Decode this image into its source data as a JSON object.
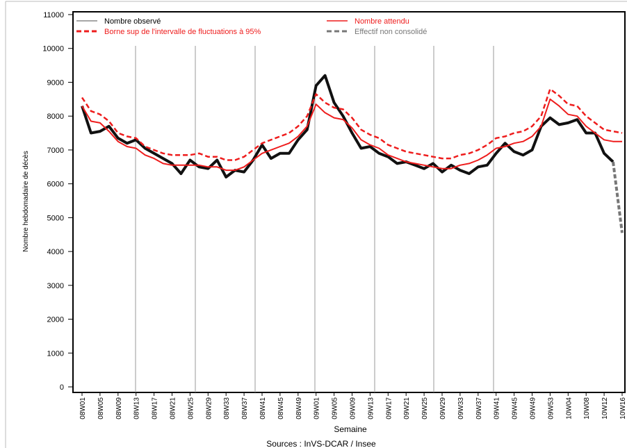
{
  "chart_data": {
    "type": "line",
    "x_label": "Semaine",
    "y_label": "Nombre hebdomadaire de décès",
    "source": "Sources : InVS-DCAR / Insee",
    "categories": [
      "08W01",
      null,
      "08W05",
      null,
      "08W09",
      null,
      "08W13",
      null,
      "08W17",
      null,
      "08W21",
      null,
      "08W25",
      null,
      "08W29",
      null,
      "08W33",
      null,
      "08W37",
      null,
      "08W41",
      null,
      "08W45",
      null,
      "08W49",
      null,
      "09W01",
      null,
      "09W05",
      null,
      "09W09",
      null,
      "09W13",
      null,
      "09W17",
      null,
      "09W21",
      null,
      "09W25",
      null,
      "09W29",
      null,
      "09W33",
      null,
      "09W37",
      null,
      "09W41",
      null,
      "09W45",
      null,
      "09W49",
      null,
      "09W53",
      null,
      "10W04",
      null,
      "10W08",
      null,
      "10W12",
      null,
      "10W16"
    ],
    "ylim": [
      0,
      11000
    ],
    "yticks": [
      0,
      1000,
      2000,
      3000,
      4000,
      5000,
      6000,
      7000,
      8000,
      9000,
      10000,
      11000
    ],
    "grid": false,
    "legend": "top-left",
    "series": [
      {
        "name": "Nombre observé",
        "color": "#111111",
        "dashed": false,
        "values": [
          8300,
          7500,
          7550,
          7700,
          7350,
          7200,
          7300,
          7050,
          6900,
          6750,
          6600,
          6300,
          6700,
          6500,
          6450,
          6700,
          6200,
          6400,
          6350,
          6700,
          7150,
          6750,
          6900,
          6900,
          7300,
          7600,
          8900,
          9200,
          8400,
          8000,
          7500,
          7050,
          7100,
          6900,
          6800,
          6600,
          6650,
          6550,
          6450,
          6600,
          6350,
          6550,
          6400,
          6300,
          6500,
          6550,
          6900,
          7200,
          6950,
          6850,
          7000,
          7700,
          7950,
          7750,
          7800,
          7900,
          7500,
          7500,
          6900,
          6650,
          null
        ]
      },
      {
        "name": "Borne sup de l'intervalle de fluctuations à 95%",
        "color": "#ee1c1c",
        "dashed": true,
        "values": [
          8550,
          8150,
          8050,
          7850,
          7500,
          7400,
          7350,
          7100,
          7000,
          6900,
          6850,
          6850,
          6850,
          6900,
          6800,
          6800,
          6700,
          6700,
          6800,
          7000,
          7200,
          7300,
          7400,
          7500,
          7700,
          8000,
          8650,
          8400,
          8250,
          8200,
          7950,
          7600,
          7450,
          7350,
          7150,
          7050,
          6950,
          6900,
          6850,
          6800,
          6750,
          6750,
          6850,
          6900,
          7000,
          7150,
          7350,
          7400,
          7500,
          7550,
          7700,
          8000,
          8800,
          8600,
          8350,
          8300,
          8000,
          7800,
          7600,
          7550,
          7500
        ]
      },
      {
        "name": "Nombre attendu",
        "color": "#ee1c1c",
        "dashed": false,
        "values": [
          8300,
          7850,
          7800,
          7550,
          7250,
          7100,
          7050,
          6850,
          6750,
          6600,
          6550,
          6550,
          6550,
          6550,
          6500,
          6500,
          6400,
          6400,
          6500,
          6700,
          6900,
          7000,
          7100,
          7200,
          7400,
          7700,
          8350,
          8100,
          7950,
          7900,
          7650,
          7300,
          7150,
          7050,
          6850,
          6750,
          6650,
          6600,
          6550,
          6500,
          6450,
          6450,
          6550,
          6600,
          6700,
          6850,
          7050,
          7100,
          7200,
          7250,
          7400,
          7700,
          8500,
          8300,
          8050,
          8000,
          7700,
          7500,
          7300,
          7250,
          7250
        ]
      },
      {
        "name": "Effectif non consolidé",
        "color": "#777777",
        "dashed": true,
        "values": [
          null,
          null,
          null,
          null,
          null,
          null,
          null,
          null,
          null,
          null,
          null,
          null,
          null,
          null,
          null,
          null,
          null,
          null,
          null,
          null,
          null,
          null,
          null,
          null,
          null,
          null,
          null,
          null,
          null,
          null,
          null,
          null,
          null,
          null,
          null,
          null,
          null,
          null,
          null,
          null,
          null,
          null,
          null,
          null,
          null,
          null,
          null,
          null,
          null,
          null,
          null,
          null,
          null,
          null,
          null,
          null,
          null,
          null,
          null,
          6650,
          4550
        ]
      }
    ]
  }
}
